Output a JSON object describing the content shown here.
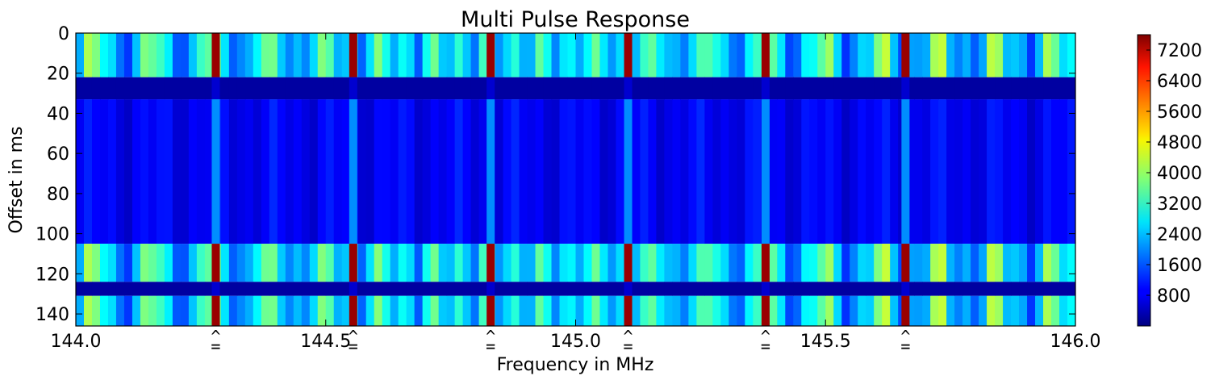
{
  "chart_data": {
    "type": "heatmap",
    "title": "Multi Pulse Response",
    "xlabel": "Frequency in MHz",
    "ylabel": "Offset in ms",
    "xlim": [
      144.0,
      146.0
    ],
    "ylim": [
      146,
      0
    ],
    "x_ticks": [
      {
        "value": 144.0,
        "label": "144.0"
      },
      {
        "value": 144.5,
        "label": "144.5"
      },
      {
        "value": 145.0,
        "label": "145.0"
      },
      {
        "value": 145.5,
        "label": "145.5"
      },
      {
        "value": 146.0,
        "label": "146.0"
      }
    ],
    "y_ticks": [
      {
        "value": 0,
        "label": "0"
      },
      {
        "value": 20,
        "label": "20"
      },
      {
        "value": 40,
        "label": "40"
      },
      {
        "value": 60,
        "label": "60"
      },
      {
        "value": 80,
        "label": "80"
      },
      {
        "value": 100,
        "label": "100"
      },
      {
        "value": 120,
        "label": "120"
      },
      {
        "value": 140,
        "label": "140"
      }
    ],
    "marker_label": "^\n=",
    "markers": [
      144.28,
      144.555,
      144.83,
      145.105,
      145.38,
      145.66
    ],
    "colorbar": {
      "colormap": "jet",
      "range": [
        0,
        7600
      ],
      "ticks": [
        {
          "value": 800,
          "label": "800"
        },
        {
          "value": 1600,
          "label": "1600"
        },
        {
          "value": 2400,
          "label": "2400"
        },
        {
          "value": 3200,
          "label": "3200"
        },
        {
          "value": 4000,
          "label": "4000"
        },
        {
          "value": 4800,
          "label": "4800"
        },
        {
          "value": 5600,
          "label": "5600"
        },
        {
          "value": 6400,
          "label": "6400"
        },
        {
          "value": 7200,
          "label": "7200"
        }
      ]
    },
    "bands": [
      {
        "from": 0,
        "to": 22,
        "level": "high"
      },
      {
        "from": 22,
        "to": 33,
        "level": "low"
      },
      {
        "from": 33,
        "to": 105,
        "level": "mid"
      },
      {
        "from": 105,
        "to": 124,
        "level": "high"
      },
      {
        "from": 124,
        "to": 131,
        "level": "low"
      },
      {
        "from": 131,
        "to": 146,
        "level": "high"
      }
    ],
    "peak_lines": [
      144.28,
      144.555,
      144.83,
      145.105,
      145.38,
      145.66
    ],
    "peak_value": 7400,
    "grid": false,
    "legend": "colorbar-right"
  }
}
